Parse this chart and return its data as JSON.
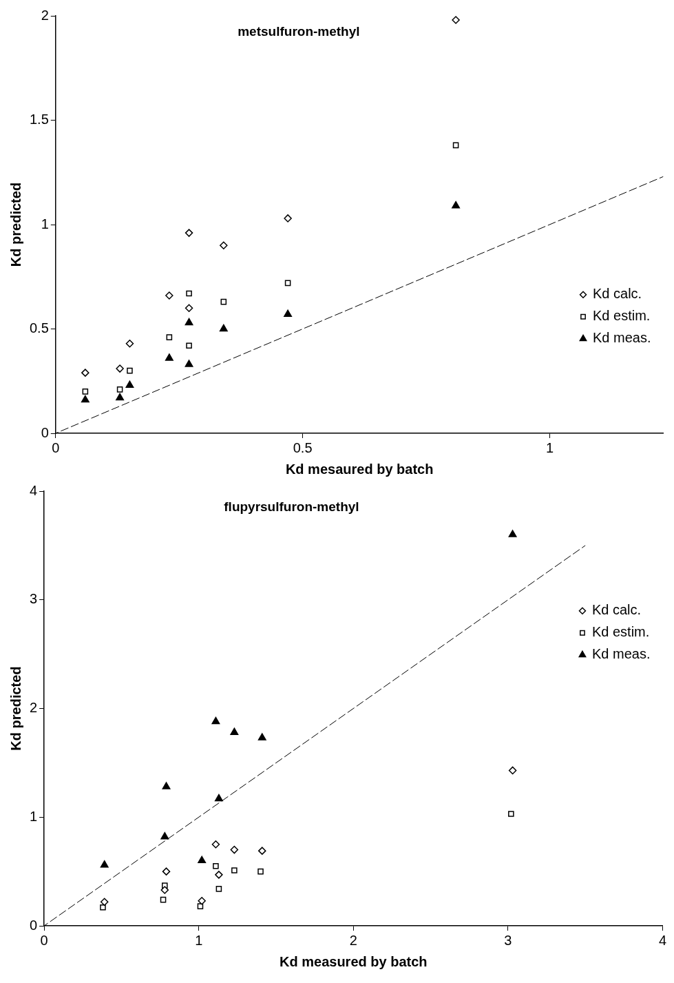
{
  "chart_data": [
    {
      "type": "scatter",
      "title": "metsulfuron-methyl",
      "xlabel": "Kd mesaured by batch",
      "ylabel": "Kd predicted",
      "xlim": [
        0,
        1.23
      ],
      "xticks": [
        0,
        0.5,
        1
      ],
      "ylim": [
        0,
        2
      ],
      "yticks": [
        0,
        0.5,
        1,
        1.5,
        2
      ],
      "grid": false,
      "legend": "bottom right",
      "series": [
        {
          "name": "Kd calc.",
          "color": "#000000",
          "marker": "diamond",
          "x": [
            0.06,
            0.13,
            0.15,
            0.23,
            0.27,
            0.27,
            0.34,
            0.47,
            0.81
          ],
          "values": [
            0.29,
            0.31,
            0.43,
            0.66,
            0.96,
            0.6,
            0.9,
            1.03,
            1.98
          ]
        },
        {
          "name": "Kd estim.",
          "color": "#000000",
          "marker": "square",
          "x": [
            0.06,
            0.13,
            0.15,
            0.23,
            0.27,
            0.27,
            0.34,
            0.47,
            0.81
          ],
          "values": [
            0.2,
            0.21,
            0.3,
            0.46,
            0.67,
            0.42,
            0.63,
            0.72,
            1.38
          ]
        },
        {
          "name": "Kd meas.",
          "color": "#000000",
          "marker": "triangle",
          "x": [
            0.06,
            0.13,
            0.15,
            0.23,
            0.27,
            0.27,
            0.34,
            0.47,
            0.81
          ],
          "values": [
            0.16,
            0.17,
            0.23,
            0.36,
            0.53,
            0.33,
            0.5,
            0.57,
            1.09
          ]
        },
        {
          "type": "line",
          "color": "#000000",
          "line_style": "dashed",
          "marker": "none",
          "x": [
            0,
            1.23
          ],
          "values": [
            0,
            1.23
          ]
        }
      ]
    },
    {
      "type": "scatter",
      "title": "flupyrsulfuron-methyl",
      "xlabel": "Kd measured by batch",
      "ylabel": "Kd predicted",
      "xlim": [
        0,
        4
      ],
      "xticks": [
        0,
        1,
        2,
        3,
        4
      ],
      "ylim": [
        0,
        4
      ],
      "yticks": [
        0,
        1,
        2,
        3,
        4
      ],
      "grid": false,
      "legend": "top right",
      "series": [
        {
          "name": "Kd calc.",
          "color": "#000000",
          "marker": "diamond",
          "x": [
            0.39,
            0.79,
            0.78,
            1.02,
            1.11,
            1.13,
            1.23,
            1.41,
            3.03
          ],
          "values": [
            0.22,
            0.5,
            0.33,
            0.23,
            0.75,
            0.47,
            0.7,
            0.69,
            1.43
          ]
        },
        {
          "name": "Kd estim.",
          "color": "#000000",
          "marker": "square",
          "x": [
            0.38,
            0.78,
            0.77,
            1.01,
            1.11,
            1.13,
            1.23,
            1.4,
            3.02
          ],
          "values": [
            0.17,
            0.37,
            0.24,
            0.18,
            0.55,
            0.34,
            0.51,
            0.5,
            1.03
          ]
        },
        {
          "name": "Kd meas.",
          "color": "#000000",
          "marker": "triangle",
          "x": [
            0.39,
            0.79,
            0.78,
            1.02,
            1.11,
            1.13,
            1.23,
            1.41,
            3.03
          ],
          "values": [
            0.56,
            1.28,
            0.82,
            0.6,
            1.88,
            1.17,
            1.78,
            1.73,
            3.6
          ]
        },
        {
          "type": "line",
          "color": "#000000",
          "line_style": "dashed",
          "marker": "none",
          "x": [
            0,
            3.5
          ],
          "values": [
            0,
            3.5
          ]
        }
      ]
    }
  ]
}
